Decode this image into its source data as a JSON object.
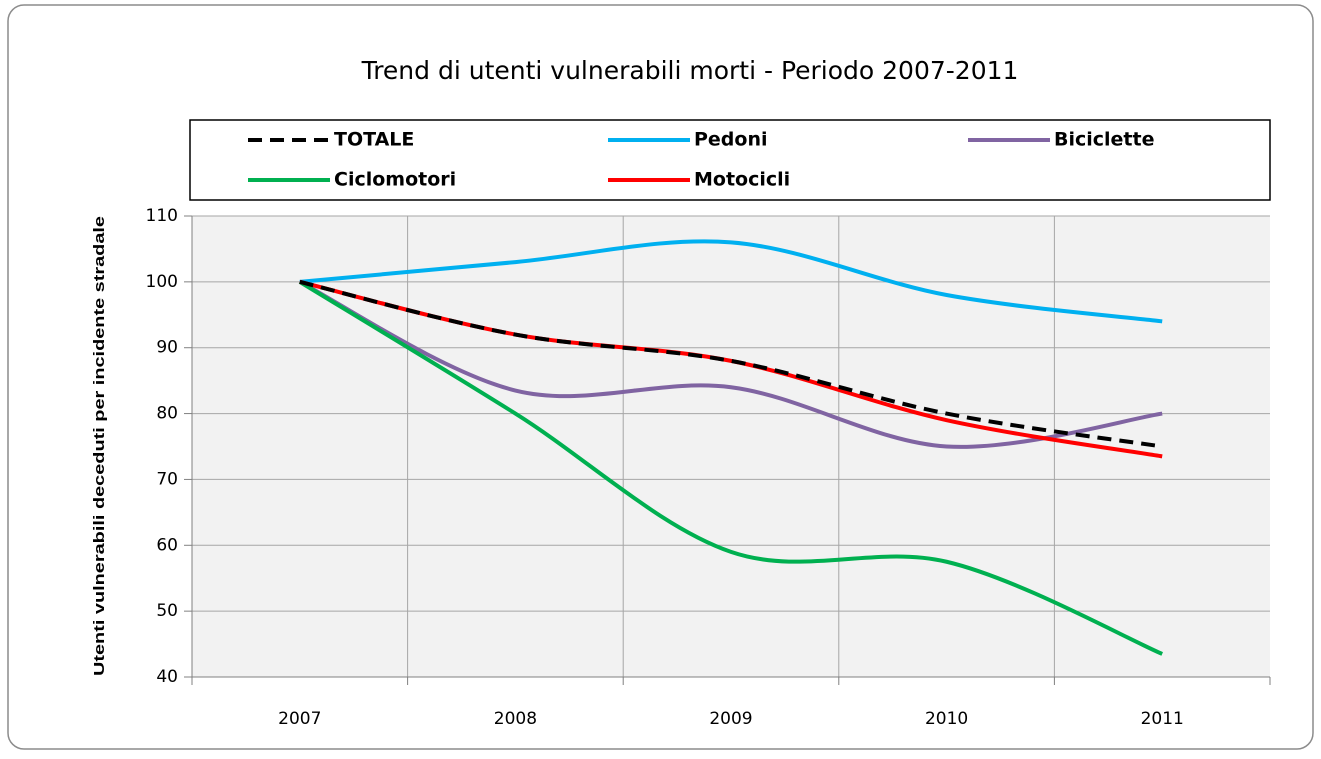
{
  "chart_data": {
    "type": "line",
    "title": "Trend di utenti vulnerabili morti - Periodo 2007-2011",
    "y_label": "Utenti vulnerabili deceduti per incidente stradale",
    "categories": [
      "2007",
      "2008",
      "2009",
      "2010",
      "2011"
    ],
    "series": [
      {
        "name": "TOTALE",
        "color": "#000000",
        "dashed": true,
        "values": [
          100,
          92,
          88,
          80,
          75
        ]
      },
      {
        "name": "Pedoni",
        "color": "#00b0f0",
        "values": [
          100,
          103,
          106,
          98,
          94
        ]
      },
      {
        "name": "Biciclette",
        "color": "#8064a2",
        "values": [
          100,
          83.5,
          84,
          75,
          80
        ]
      },
      {
        "name": "Ciclomotori",
        "color": "#00b050",
        "values": [
          100,
          80,
          59,
          57.5,
          43.5
        ]
      },
      {
        "name": "Motocicli",
        "color": "#ff0000",
        "values": [
          100,
          92,
          88,
          79,
          73.5
        ]
      }
    ],
    "ylim": [
      40,
      110
    ],
    "yticks": [
      40,
      50,
      60,
      70,
      80,
      90,
      100,
      110
    ],
    "grid": true,
    "smooth": true,
    "legend": "top"
  }
}
